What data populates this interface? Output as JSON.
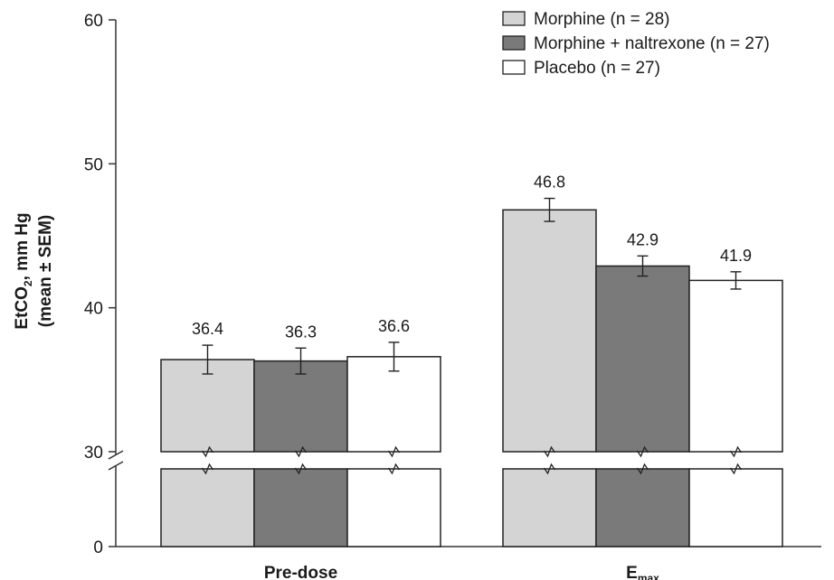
{
  "chart_data": {
    "type": "bar",
    "categories": [
      "Pre-dose",
      "Emax"
    ],
    "category_labels": [
      {
        "main": "Pre-dose",
        "sub": ""
      },
      {
        "main": "E",
        "sub": "max"
      }
    ],
    "series": [
      {
        "name": "Morphine (n = 28)",
        "color": "#d4d4d4",
        "values": [
          36.4,
          46.8
        ],
        "sem": [
          1.0,
          0.8
        ]
      },
      {
        "name": "Morphine + naltrexone (n = 27)",
        "color": "#7a7a7a",
        "values": [
          36.3,
          42.9
        ],
        "sem": [
          0.9,
          0.7
        ]
      },
      {
        "name": "Placebo (n = 27)",
        "color": "#ffffff",
        "values": [
          36.6,
          41.9
        ],
        "sem": [
          1.0,
          0.6
        ]
      }
    ],
    "ylabel_line1_pre": "EtCO",
    "ylabel_line1_sub": "2",
    "ylabel_line1_post": ", mm Hg",
    "ylabel_line2": "(mean ± SEM)",
    "yticks": [
      "0",
      "30",
      "40",
      "50",
      "60"
    ],
    "yaxis_break": [
      0,
      30
    ],
    "ylim": [
      0,
      60
    ],
    "legend_position": "top-right",
    "grid": false
  }
}
